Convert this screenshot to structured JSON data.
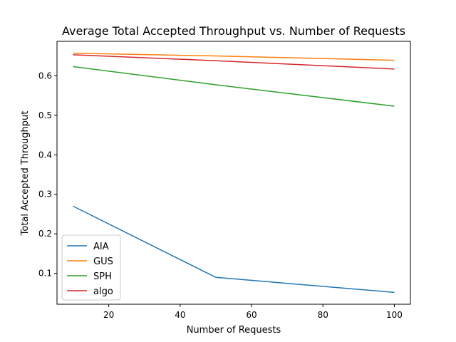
{
  "chart_data": {
    "type": "line",
    "title": "Average Total Accepted Throughput vs. Number of Requests",
    "xlabel": "Number of Requests",
    "ylabel": "Total Accepted Throughput",
    "x": [
      10,
      50,
      100
    ],
    "series": [
      {
        "name": "AIA",
        "color": "#1f77b4",
        "values": [
          0.27,
          0.09,
          0.052
        ]
      },
      {
        "name": "GUS",
        "color": "#ff7f0e",
        "values": [
          0.657,
          0.65,
          0.639
        ]
      },
      {
        "name": "SPH",
        "color": "#2ca02c",
        "values": [
          0.623,
          0.577,
          0.523
        ]
      },
      {
        "name": "algo",
        "color": "#d62728",
        "values": [
          0.653,
          0.638,
          0.617
        ]
      }
    ],
    "xlim": [
      5.5,
      104.5
    ],
    "ylim": [
      0.022,
      0.687
    ],
    "xticks": [
      20,
      40,
      60,
      80,
      100
    ],
    "yticks": [
      0.1,
      0.2,
      0.3,
      0.4,
      0.5,
      0.6
    ],
    "grid": false,
    "legend_position": "lower-left"
  }
}
